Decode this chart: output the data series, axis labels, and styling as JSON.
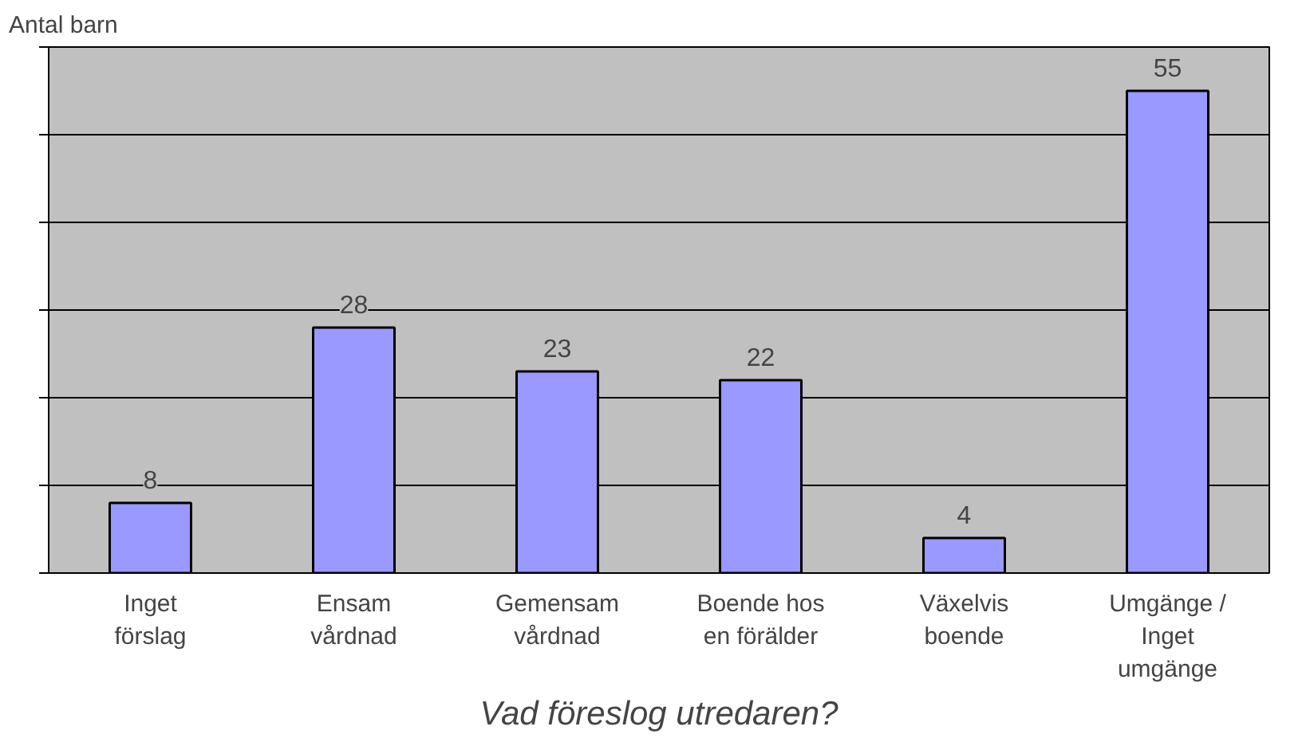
{
  "chart_data": {
    "type": "bar",
    "xlabel": "Vad föreslog utredaren?",
    "ylabel": "Antal barn",
    "categories": [
      "Inget förslag",
      "Ensam vårdnad",
      "Gemensam vårdnad",
      "Boende hos en förälder",
      "Växelvis boende",
      "Umgänge / Inget umgänge"
    ],
    "values": [
      8,
      28,
      23,
      22,
      4,
      55
    ],
    "color": "#9999ff",
    "ylim": [
      0,
      60
    ],
    "yticks": [
      {
        "value": 0,
        "label": null
      },
      {
        "value": 10,
        "label": null
      },
      {
        "value": 20,
        "label": null
      },
      {
        "value": 30,
        "label": null
      },
      {
        "value": 40,
        "label": null
      },
      {
        "value": 50,
        "label": null
      },
      {
        "value": 60,
        "label": null
      }
    ],
    "tick_labels": "x",
    "grid": "y",
    "data_labels": true
  }
}
